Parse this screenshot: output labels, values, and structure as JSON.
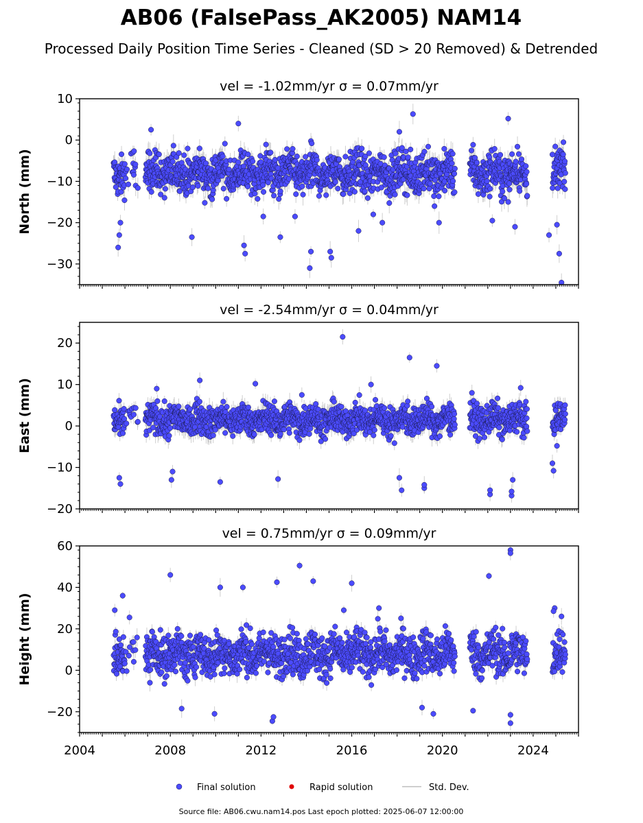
{
  "title": "AB06 (FalsePass_AK2005) NAM14",
  "subtitle": "Processed Daily Position Time Series - Cleaned (SD > 20 Removed) & Detrended",
  "chart_data": {
    "type": "scatter",
    "x_axis": {
      "range": [
        2004.0,
        2026.0
      ],
      "ticks": [
        "2004",
        "2008",
        "2012",
        "2016",
        "2020",
        "2024"
      ]
    },
    "colors": {
      "final": "#4b4bff",
      "final_edge": "#1a1a4a",
      "rapid": "#e00000",
      "stddev": "#bdbdbd"
    },
    "gaps": [
      [
        2006.6,
        2006.9
      ],
      [
        2020.55,
        2021.2
      ],
      [
        2023.75,
        2024.85
      ]
    ],
    "last_epoch": 2025.43,
    "panels": [
      {
        "key": "north",
        "title": "vel = -1.02mm/yr   σ = 0.07mm/yr",
        "ylabel": "North (mm)",
        "ylim": [
          -35,
          10
        ],
        "yticks": [
          "10",
          "0",
          "−10",
          "−20",
          "−30"
        ],
        "yticks_values": [
          10,
          0,
          -10,
          -20,
          -30
        ],
        "mean": -8,
        "spread": 3.5,
        "outliers": [
          [
            2005.7,
            -26.0
          ],
          [
            2005.75,
            -23.0
          ],
          [
            2005.8,
            -20.0
          ],
          [
            2007.15,
            2.5
          ],
          [
            2008.95,
            -23.5
          ],
          [
            2011.3,
            -27.5
          ],
          [
            2011.25,
            -25.5
          ],
          [
            2012.1,
            -18.5
          ],
          [
            2012.85,
            -23.5
          ],
          [
            2014.15,
            -31.0
          ],
          [
            2014.2,
            -27.0
          ],
          [
            2015.1,
            -28.5
          ],
          [
            2015.05,
            -27.0
          ],
          [
            2011.0,
            4.0
          ],
          [
            2017.35,
            -20.0
          ],
          [
            2018.1,
            2.0
          ],
          [
            2018.7,
            6.3
          ],
          [
            2019.65,
            -16.0
          ],
          [
            2022.9,
            5.2
          ],
          [
            2023.2,
            -21.0
          ],
          [
            2024.7,
            -23.0
          ],
          [
            2025.15,
            -27.5
          ],
          [
            2025.25,
            -34.5
          ],
          [
            2025.05,
            -20.5
          ],
          [
            2024.85,
            -3.5
          ],
          [
            2013.5,
            -18.5
          ],
          [
            2016.3,
            -22.0
          ],
          [
            2022.2,
            -19.5
          ],
          [
            2016.95,
            -18.0
          ],
          [
            2019.85,
            -20.0
          ]
        ]
      },
      {
        "key": "east",
        "title": "vel = -2.54mm/yr   σ = 0.04mm/yr",
        "ylabel": "East (mm)",
        "ylim": [
          -20,
          25
        ],
        "yticks": [
          "20",
          "10",
          "0",
          "−10",
          "−20"
        ],
        "yticks_values": [
          20,
          10,
          0,
          -10,
          -20
        ],
        "mean": 1.5,
        "spread": 2.6,
        "outliers": [
          [
            2015.6,
            21.5
          ],
          [
            2018.55,
            16.5
          ],
          [
            2019.75,
            14.5
          ],
          [
            2009.3,
            11.0
          ],
          [
            2007.4,
            9.0
          ],
          [
            2005.8,
            -14.0
          ],
          [
            2005.75,
            -12.5
          ],
          [
            2008.05,
            -13.0
          ],
          [
            2008.1,
            -11.0
          ],
          [
            2010.2,
            -13.5
          ],
          [
            2012.75,
            -12.8
          ],
          [
            2018.2,
            -15.5
          ],
          [
            2018.1,
            -12.5
          ],
          [
            2019.2,
            -15.0
          ],
          [
            2019.2,
            -14.2
          ],
          [
            2022.1,
            -16.5
          ],
          [
            2022.1,
            -15.5
          ],
          [
            2023.05,
            -16.8
          ],
          [
            2023.05,
            -15.8
          ],
          [
            2023.1,
            -13.0
          ],
          [
            2024.85,
            -9.0
          ],
          [
            2024.9,
            -10.8
          ],
          [
            2025.05,
            -4.8
          ],
          [
            2021.3,
            8.0
          ],
          [
            2011.75,
            10.2
          ],
          [
            2013.8,
            7.5
          ],
          [
            2016.85,
            10.0
          ],
          [
            2023.45,
            9.2
          ]
        ]
      },
      {
        "key": "height",
        "title": "vel = 0.75mm/yr   σ = 0.09mm/yr",
        "ylabel": "Height (mm)",
        "ylim": [
          -30,
          60
        ],
        "yticks": [
          "60",
          "40",
          "20",
          "0",
          "−20"
        ],
        "yticks_values": [
          60,
          40,
          20,
          0,
          -20
        ],
        "mean": 8,
        "spread": 7.5,
        "outliers": [
          [
            2023.0,
            58.0
          ],
          [
            2023.0,
            56.5
          ],
          [
            2013.7,
            50.5
          ],
          [
            2008.0,
            46.0
          ],
          [
            2022.05,
            45.5
          ],
          [
            2011.2,
            40.0
          ],
          [
            2014.3,
            43.0
          ],
          [
            2016.0,
            42.0
          ],
          [
            2012.7,
            42.5
          ],
          [
            2005.9,
            36.0
          ],
          [
            2010.2,
            40.0
          ],
          [
            2012.5,
            -24.5
          ],
          [
            2012.55,
            -22.5
          ],
          [
            2023.0,
            -25.5
          ],
          [
            2023.0,
            -21.5
          ],
          [
            2009.95,
            -21.0
          ],
          [
            2021.35,
            -19.5
          ],
          [
            2008.5,
            -18.5
          ],
          [
            2019.6,
            -21.0
          ],
          [
            2019.1,
            -18.0
          ],
          [
            2005.55,
            29.0
          ],
          [
            2024.95,
            30.0
          ],
          [
            2024.9,
            28.5
          ],
          [
            2025.25,
            26.0
          ],
          [
            2007.1,
            -6.0
          ],
          [
            2006.2,
            25.5
          ],
          [
            2015.65,
            29.0
          ],
          [
            2017.2,
            30.0
          ]
        ]
      }
    ],
    "legend": {
      "final": "Final solution",
      "rapid": "Rapid solution",
      "stddev": "Std. Dev."
    }
  },
  "footer": "Source file: AB06.cwu.nam14.pos  Last epoch plotted: 2025-06-07 12:00:00"
}
